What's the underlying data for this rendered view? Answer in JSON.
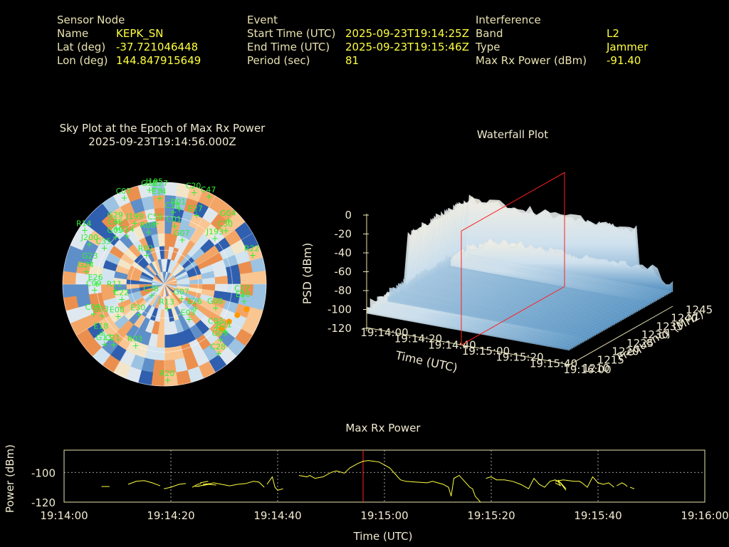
{
  "info": {
    "sensor": {
      "title": "Sensor Node",
      "rows": [
        {
          "label": "Name",
          "value": "KEPK_SN"
        },
        {
          "label": "Lat (deg)",
          "value": "-37.721046448"
        },
        {
          "label": "Lon (deg)",
          "value": "144.847915649"
        }
      ]
    },
    "event": {
      "title": "Event",
      "rows": [
        {
          "label": "Start Time (UTC)",
          "value": "2025-09-23T19:14:25Z"
        },
        {
          "label": "End Time (UTC)",
          "value": "2025-09-23T19:15:46Z"
        },
        {
          "label": "Period (sec)",
          "value": "81"
        }
      ]
    },
    "interference": {
      "title": "Interference",
      "rows": [
        {
          "label": "Band",
          "value": "L2"
        },
        {
          "label": "Type",
          "value": "Jammer"
        },
        {
          "label": "Max Rx Power (dBm)",
          "value": "-91.40"
        }
      ]
    }
  },
  "colors": {
    "header": "#e8e2b0",
    "value": "#ffff40",
    "satellite": "#33ee33",
    "jammer_track": "#ff9900",
    "marker": "#ff2020",
    "power_line": "#ffff40"
  },
  "chart_data": [
    {
      "type": "scatter",
      "title": "Sky Plot at the Epoch of Max Rx Power",
      "subtitle": "2025-09-23T19:14:56.000Z",
      "satellites": [
        {
          "id": "C07",
          "az": 335,
          "el": 6
        },
        {
          "id": "G18",
          "az": 351,
          "el": 6
        },
        {
          "id": "J195",
          "az": 354,
          "el": 5
        },
        {
          "id": "C27",
          "az": 358,
          "el": 7
        },
        {
          "id": "C20",
          "az": 18,
          "el": 5
        },
        {
          "id": "E14",
          "az": 357,
          "el": 14
        },
        {
          "id": "R01",
          "az": 11,
          "el": 22
        },
        {
          "id": "E27",
          "az": 25,
          "el": 23
        },
        {
          "id": "C18",
          "az": 7,
          "el": 26
        },
        {
          "id": "C47",
          "az": 27,
          "el": 3
        },
        {
          "id": "G04",
          "az": 45,
          "el": 10
        },
        {
          "id": "C30",
          "az": 49,
          "el": 18
        },
        {
          "id": "R14",
          "az": 304,
          "el": 5
        },
        {
          "id": "G29",
          "az": 322,
          "el": 20
        },
        {
          "id": "C36",
          "az": 319,
          "el": 25
        },
        {
          "id": "J199",
          "az": 334,
          "el": 30
        },
        {
          "id": "C59",
          "az": 352,
          "el": 36
        },
        {
          "id": "C01",
          "az": 10,
          "el": 38
        },
        {
          "id": "G05",
          "az": 314,
          "el": 30
        },
        {
          "id": "G14",
          "az": 322,
          "el": 36
        },
        {
          "id": "R08",
          "az": 343,
          "el": 42
        },
        {
          "id": "G07",
          "az": 22,
          "el": 48
        },
        {
          "id": "J193",
          "az": 48,
          "el": 30
        },
        {
          "id": "R22",
          "az": 72,
          "el": 8
        },
        {
          "id": "J200",
          "az": 298,
          "el": 15
        },
        {
          "id": "C35",
          "az": 301,
          "el": 28
        },
        {
          "id": "R02",
          "az": 328,
          "el": 60
        },
        {
          "id": "G23",
          "az": 286,
          "el": 22
        },
        {
          "id": "G24",
          "az": 279,
          "el": 20
        },
        {
          "id": "E26",
          "az": 270,
          "el": 30
        },
        {
          "id": "R11",
          "az": 262,
          "el": 46
        },
        {
          "id": "C22",
          "az": 250,
          "el": 50
        },
        {
          "id": "C38",
          "az": 228,
          "el": 75
        },
        {
          "id": "C09",
          "az": 265,
          "el": 28
        },
        {
          "id": "C08",
          "az": 247,
          "el": 22
        },
        {
          "id": "E08",
          "az": 235,
          "el": 40
        },
        {
          "id": "E30",
          "az": 220,
          "el": 55
        },
        {
          "id": "C33",
          "az": 243,
          "el": 28
        },
        {
          "id": "R13",
          "az": 173,
          "el": 68
        },
        {
          "id": "G07b",
          "az": 130,
          "el": 70
        },
        {
          "id": "E26b",
          "az": 128,
          "el": 55
        },
        {
          "id": "E03",
          "az": 145,
          "el": 52
        },
        {
          "id": "G08",
          "az": 115,
          "el": 40
        },
        {
          "id": "C03",
          "az": 130,
          "el": 30
        },
        {
          "id": "C27b",
          "az": 98,
          "el": 20
        },
        {
          "id": "E20",
          "az": 102,
          "el": 18
        },
        {
          "id": "R21",
          "az": 128,
          "el": 22
        },
        {
          "id": "G05b",
          "az": 135,
          "el": 20
        },
        {
          "id": "C28",
          "az": 142,
          "el": 12
        },
        {
          "id": "E18",
          "az": 232,
          "el": 20
        },
        {
          "id": "G13",
          "az": 225,
          "el": 15
        },
        {
          "id": "C21",
          "az": 220,
          "el": 20
        },
        {
          "id": "R03",
          "az": 205,
          "el": 30
        },
        {
          "id": "R20",
          "az": 178,
          "el": 5
        }
      ],
      "jammer_track": [
        {
          "az": 107,
          "el": 14
        },
        {
          "az": 113,
          "el": 20
        },
        {
          "az": 120,
          "el": 24
        },
        {
          "az": 128,
          "el": 26
        }
      ]
    },
    {
      "type": "area",
      "title": "Waterfall Plot",
      "xlabel": "Time (UTC)",
      "ylabel": "Frequency (MHz)",
      "zlabel": "PSD (dBm)",
      "x_ticks": [
        "19:14:00",
        "19:14:20",
        "19:14:40",
        "19:15:00",
        "19:15:20",
        "19:15:40",
        "19:16:00"
      ],
      "y_ticks": [
        "1210",
        "1215",
        "1220",
        "1225",
        "1230",
        "1235",
        "1240",
        "1245"
      ],
      "z_ticks": [
        "-120",
        "-100",
        "-80",
        "-60",
        "-40",
        "-20",
        "0"
      ],
      "xlim": [
        0,
        120
      ],
      "ylim": [
        1210,
        1245
      ],
      "zlim": [
        -120,
        0
      ],
      "marker_time": 56
    },
    {
      "type": "line",
      "title": "Max Rx Power",
      "xlabel": "Time (UTC)",
      "ylabel": "Power (dBm)",
      "x_ticks": [
        "19:14:00",
        "19:14:20",
        "19:14:40",
        "19:15:00",
        "19:15:20",
        "19:15:40",
        "19:16:00"
      ],
      "y_ticks": [
        "-100",
        "-120"
      ],
      "xlim": [
        0,
        120
      ],
      "ylim": [
        -120,
        -85
      ],
      "marker_time": 56,
      "segments": [
        [
          [
            7,
            -109.5
          ],
          [
            8.5,
            -109.5
          ]
        ],
        [
          [
            12,
            -108
          ],
          [
            13.5,
            -106
          ],
          [
            15,
            -105.5
          ],
          [
            16.5,
            -107
          ],
          [
            18,
            -109
          ]
        ],
        [
          [
            18.7,
            -111
          ],
          [
            20,
            -110
          ],
          [
            21.5,
            -108
          ],
          [
            22.8,
            -107.5
          ]
        ],
        [
          [
            25.5,
            -109
          ],
          [
            27,
            -108
          ],
          [
            28.5,
            -108.5
          ]
        ],
        [
          [
            25,
            -109.5
          ],
          [
            25.5,
            -109
          ]
        ],
        [
          [
            25.5,
            -107
          ],
          [
            27,
            -106
          ]
        ],
        [
          [
            24,
            -110
          ],
          [
            25,
            -108
          ],
          [
            25.7,
            -107.5
          ]
        ],
        [
          [
            26,
            -108
          ],
          [
            27.5,
            -107.5
          ]
        ],
        [
          [
            24.5,
            -109.5
          ],
          [
            26.5,
            -108.5
          ],
          [
            28,
            -107
          ],
          [
            29.5,
            -108
          ],
          [
            31,
            -109
          ],
          [
            32.5,
            -108
          ],
          [
            34,
            -107.5
          ],
          [
            35.5,
            -106
          ],
          [
            36.5,
            -106.5
          ],
          [
            37.5,
            -110
          ]
        ],
        [
          [
            38,
            -108
          ],
          [
            39,
            -103
          ],
          [
            39.5,
            -110
          ],
          [
            40,
            -112
          ],
          [
            41,
            -111
          ]
        ],
        [
          [
            44,
            -102
          ],
          [
            45.5,
            -103
          ],
          [
            46,
            -102
          ],
          [
            47,
            -104
          ],
          [
            48.5,
            -103
          ],
          [
            50,
            -100
          ],
          [
            51,
            -99
          ],
          [
            52.5,
            -100.5
          ],
          [
            53.5,
            -97
          ],
          [
            55,
            -94
          ],
          [
            56,
            -92.5
          ],
          [
            57,
            -92
          ],
          [
            58,
            -92.5
          ],
          [
            59,
            -93
          ],
          [
            60,
            -95
          ],
          [
            61,
            -97
          ],
          [
            62,
            -101
          ],
          [
            63,
            -105
          ],
          [
            64,
            -106
          ],
          [
            66,
            -106.5
          ],
          [
            68,
            -107
          ],
          [
            69,
            -106
          ],
          [
            70,
            -107
          ],
          [
            71,
            -108
          ],
          [
            72,
            -110
          ],
          [
            72.5,
            -116
          ],
          [
            73,
            -104
          ],
          [
            74,
            -102
          ],
          [
            75,
            -106
          ],
          [
            76,
            -110
          ],
          [
            76.5,
            -111
          ],
          [
            77,
            -116
          ],
          [
            78,
            -124
          ]
        ],
        [
          [
            79,
            -104
          ],
          [
            80,
            -103
          ],
          [
            81,
            -105
          ],
          [
            82.5,
            -105
          ],
          [
            84,
            -106
          ],
          [
            85.5,
            -108
          ],
          [
            87,
            -111
          ],
          [
            88,
            -104
          ],
          [
            89,
            -108
          ],
          [
            90,
            -110
          ],
          [
            91,
            -106
          ],
          [
            92,
            -105
          ],
          [
            93,
            -107
          ],
          [
            94,
            -111
          ]
        ],
        [
          [
            92.5,
            -106
          ],
          [
            93,
            -109
          ]
        ],
        [
          [
            92.5,
            -105
          ],
          [
            94,
            -112
          ]
        ],
        [
          [
            92,
            -107
          ],
          [
            93,
            -109
          ]
        ],
        [
          [
            92,
            -106
          ],
          [
            93.5,
            -105
          ],
          [
            95.5,
            -106
          ],
          [
            96.5,
            -106
          ],
          [
            97,
            -107
          ],
          [
            98,
            -110
          ],
          [
            99,
            -103
          ],
          [
            100,
            -107
          ],
          [
            101,
            -108
          ],
          [
            102,
            -107
          ],
          [
            103,
            -110
          ]
        ],
        [
          [
            103.5,
            -109
          ],
          [
            104,
            -108
          ],
          [
            104.5,
            -107
          ],
          [
            105,
            -108
          ],
          [
            105.5,
            -109.5
          ]
        ],
        [
          [
            106,
            -110
          ],
          [
            106.8,
            -111
          ]
        ]
      ]
    }
  ]
}
